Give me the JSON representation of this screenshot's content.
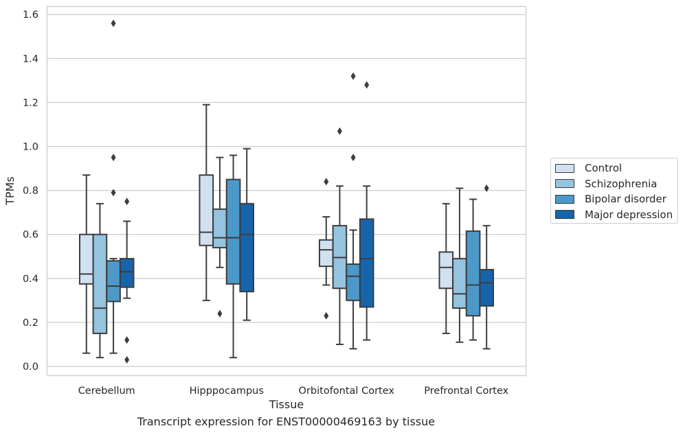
{
  "chart_data": {
    "type": "box",
    "title": "",
    "xlabel": "Tissue",
    "ylabel": "TPMs",
    "caption": "Transcript expression for ENST00000469163 by tissue",
    "ylim": [
      -0.04,
      1.64
    ],
    "yticks": [
      "0.0",
      "0.2",
      "0.4",
      "0.6",
      "0.8",
      "1.0",
      "1.2",
      "1.4",
      "1.6"
    ],
    "grid": "horizontal",
    "legend_position": "right",
    "categories": [
      "Cerebellum",
      "Hipppocampus",
      "Orbitofontal Cortex",
      "Prefrontal Cortex"
    ],
    "series": [
      {
        "name": "Control",
        "color": "#d0e1f2",
        "boxes": [
          {
            "whisker_low": 0.06,
            "q1": 0.375,
            "median": 0.42,
            "q3": 0.6,
            "whisker_high": 0.87,
            "outliers": []
          },
          {
            "whisker_low": 0.3,
            "q1": 0.55,
            "median": 0.61,
            "q3": 0.87,
            "whisker_high": 1.19,
            "outliers": []
          },
          {
            "whisker_low": 0.37,
            "q1": 0.455,
            "median": 0.53,
            "q3": 0.575,
            "whisker_high": 0.68,
            "outliers": [
              0.84,
              0.23
            ]
          },
          {
            "whisker_low": 0.15,
            "q1": 0.355,
            "median": 0.45,
            "q3": 0.52,
            "whisker_high": 0.74,
            "outliers": []
          }
        ]
      },
      {
        "name": "Schizophrenia",
        "color": "#94c4df",
        "boxes": [
          {
            "whisker_low": 0.04,
            "q1": 0.15,
            "median": 0.265,
            "q3": 0.6,
            "whisker_high": 0.74,
            "outliers": []
          },
          {
            "whisker_low": 0.45,
            "q1": 0.54,
            "median": 0.585,
            "q3": 0.715,
            "whisker_high": 0.95,
            "outliers": [
              0.24
            ]
          },
          {
            "whisker_low": 0.1,
            "q1": 0.355,
            "median": 0.495,
            "q3": 0.64,
            "whisker_high": 0.82,
            "outliers": [
              1.07
            ]
          },
          {
            "whisker_low": 0.11,
            "q1": 0.265,
            "median": 0.33,
            "q3": 0.49,
            "whisker_high": 0.81,
            "outliers": []
          }
        ]
      },
      {
        "name": "Bipolar disorder",
        "color": "#4b98c9",
        "boxes": [
          {
            "whisker_low": 0.06,
            "q1": 0.295,
            "median": 0.365,
            "q3": 0.48,
            "whisker_high": 0.49,
            "outliers": [
              1.56,
              0.95,
              0.79
            ]
          },
          {
            "whisker_low": 0.04,
            "q1": 0.375,
            "median": 0.585,
            "q3": 0.85,
            "whisker_high": 0.96,
            "outliers": []
          },
          {
            "whisker_low": 0.08,
            "q1": 0.3,
            "median": 0.41,
            "q3": 0.465,
            "whisker_high": 0.62,
            "outliers": [
              1.32,
              0.95
            ]
          },
          {
            "whisker_low": 0.12,
            "q1": 0.23,
            "median": 0.37,
            "q3": 0.615,
            "whisker_high": 0.76,
            "outliers": []
          }
        ]
      },
      {
        "name": "Major depression",
        "color": "#1764ab",
        "boxes": [
          {
            "whisker_low": 0.31,
            "q1": 0.36,
            "median": 0.43,
            "q3": 0.49,
            "whisker_high": 0.66,
            "outliers": [
              0.75,
              0.12,
              0.03
            ]
          },
          {
            "whisker_low": 0.21,
            "q1": 0.34,
            "median": 0.6,
            "q3": 0.74,
            "whisker_high": 0.99,
            "outliers": []
          },
          {
            "whisker_low": 0.12,
            "q1": 0.27,
            "median": 0.49,
            "q3": 0.67,
            "whisker_high": 0.82,
            "outliers": [
              1.28
            ]
          },
          {
            "whisker_low": 0.08,
            "q1": 0.275,
            "median": 0.38,
            "q3": 0.44,
            "whisker_high": 0.64,
            "outliers": [
              0.81
            ]
          }
        ]
      }
    ]
  }
}
